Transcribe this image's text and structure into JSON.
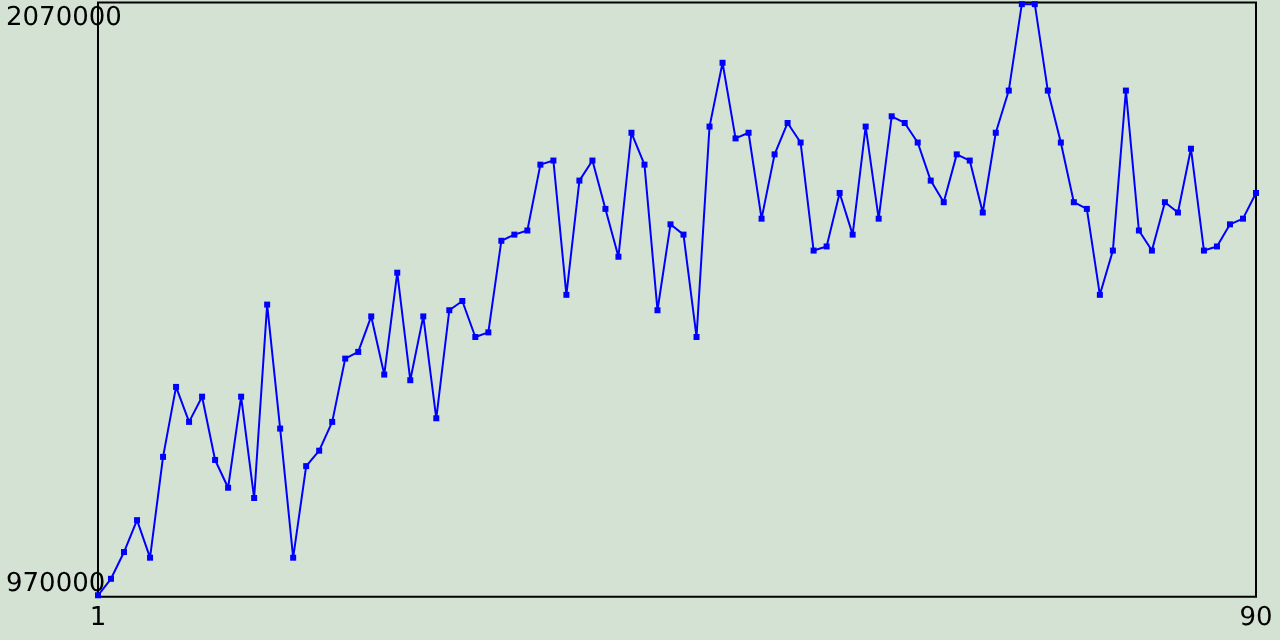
{
  "chart_data": {
    "type": "line",
    "x": [
      1,
      2,
      3,
      4,
      5,
      6,
      7,
      8,
      9,
      10,
      11,
      12,
      13,
      14,
      15,
      16,
      17,
      18,
      19,
      20,
      21,
      22,
      23,
      24,
      25,
      26,
      27,
      28,
      29,
      30,
      31,
      32,
      33,
      34,
      35,
      36,
      37,
      38,
      39,
      40,
      41,
      42,
      43,
      44,
      45,
      46,
      47,
      48,
      49,
      50,
      51,
      52,
      53,
      54,
      55,
      56,
      57,
      58,
      59,
      60,
      61,
      62,
      63,
      64,
      65,
      66,
      67,
      68,
      69,
      70,
      71,
      72,
      73,
      74,
      75,
      76,
      77,
      78,
      79,
      80,
      81,
      82,
      83,
      84,
      85,
      86,
      87,
      88,
      89,
      90
    ],
    "series": [
      {
        "color": "#0000ff",
        "values": [
          948000,
          980000,
          1032000,
          1094000,
          1021000,
          1217000,
          1353000,
          1285000,
          1334000,
          1211000,
          1157000,
          1334000,
          1137000,
          1513000,
          1272000,
          1021000,
          1199000,
          1229000,
          1285000,
          1408000,
          1421000,
          1490000,
          1377000,
          1575000,
          1366000,
          1490000,
          1292000,
          1502000,
          1520000,
          1450000,
          1459000,
          1637000,
          1649000,
          1657000,
          1785000,
          1793000,
          1532000,
          1754000,
          1793000,
          1699000,
          1606000,
          1847000,
          1785000,
          1502000,
          1669000,
          1649000,
          1450000,
          1859000,
          1983000,
          1836000,
          1847000,
          1680000,
          1805000,
          1866000,
          1828000,
          1618000,
          1626000,
          1730000,
          1649000,
          1859000,
          1680000,
          1879000,
          1866000,
          1828000,
          1754000,
          1712000,
          1805000,
          1793000,
          1692000,
          1847000,
          1929000,
          2097000,
          2097000,
          1929000,
          1828000,
          1712000,
          1699000,
          1532000,
          1618000,
          1929000,
          1657000,
          1618000,
          1712000,
          1692000,
          1816000,
          1618000,
          1626000,
          1669000,
          1680000,
          1730000
        ]
      }
    ],
    "xlim": [
      1,
      90
    ],
    "xticks": [
      1,
      90
    ],
    "ylim": [
      945000,
      2100000
    ],
    "yticks": [
      970000,
      2070000
    ],
    "grid": false,
    "marker": "square",
    "line_style": "solid"
  }
}
